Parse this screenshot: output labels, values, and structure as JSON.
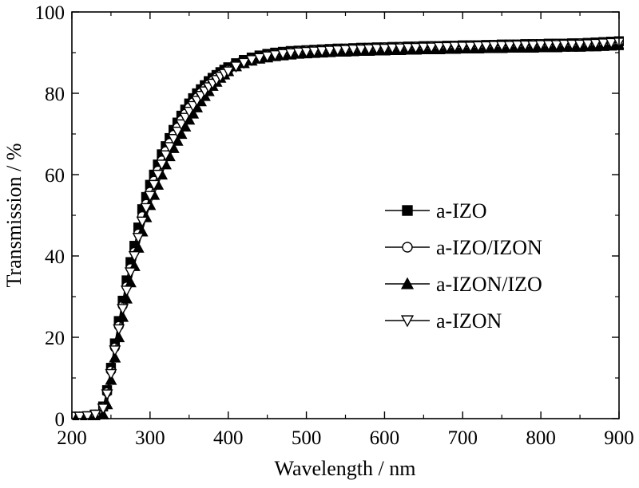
{
  "chart_data": {
    "type": "line",
    "title": "",
    "xlabel": "Wavelength / nm",
    "ylabel": "Transmission / %",
    "xlim": [
      200,
      900
    ],
    "ylim": [
      0,
      100
    ],
    "xticks": [
      200,
      300,
      400,
      500,
      600,
      700,
      800,
      900
    ],
    "yticks": [
      0,
      20,
      40,
      60,
      80,
      100
    ],
    "grid": false,
    "legend_position": "center-right",
    "x": [
      200,
      210,
      220,
      230,
      240,
      245,
      250,
      255,
      260,
      265,
      270,
      275,
      280,
      285,
      290,
      295,
      300,
      305,
      310,
      315,
      320,
      325,
      330,
      335,
      340,
      345,
      350,
      355,
      360,
      365,
      370,
      375,
      380,
      385,
      390,
      395,
      400,
      410,
      420,
      430,
      440,
      450,
      460,
      470,
      480,
      490,
      500,
      510,
      520,
      530,
      540,
      550,
      560,
      570,
      580,
      590,
      600,
      610,
      620,
      630,
      640,
      650,
      660,
      670,
      680,
      690,
      700,
      710,
      720,
      730,
      740,
      750,
      760,
      770,
      780,
      790,
      800,
      810,
      820,
      830,
      840,
      850,
      860,
      870,
      880,
      890,
      900
    ],
    "series": [
      {
        "name": "a-IZO",
        "marker": "square-filled",
        "values": [
          0.5,
          0.5,
          0.6,
          1.0,
          3.0,
          7.0,
          12.5,
          18.5,
          24.0,
          29.0,
          34.0,
          38.5,
          42.5,
          47.0,
          51.5,
          54.5,
          57.5,
          60.0,
          62.5,
          65.0,
          67.0,
          69.0,
          71.0,
          72.8,
          74.5,
          76.0,
          77.5,
          78.8,
          80.0,
          81.0,
          82.0,
          83.0,
          83.8,
          84.5,
          85.2,
          85.8,
          86.4,
          87.4,
          88.2,
          88.8,
          89.3,
          89.7,
          90.0,
          90.2,
          90.4,
          90.5,
          90.6,
          90.7,
          90.8,
          90.9,
          91.0,
          91.0,
          91.1,
          91.2,
          91.2,
          91.3,
          91.3,
          91.4,
          91.4,
          91.5,
          91.5,
          91.6,
          91.6,
          91.6,
          91.7,
          91.7,
          91.8,
          91.8,
          91.8,
          91.9,
          91.9,
          92.0,
          92.0,
          92.0,
          92.1,
          92.1,
          92.1,
          92.2,
          92.2,
          92.2,
          92.3,
          92.3,
          92.4,
          92.5,
          92.6,
          92.7,
          92.8
        ]
      },
      {
        "name": "a-IZO/IZON",
        "marker": "circle-open",
        "values": [
          0.5,
          0.5,
          0.6,
          1.0,
          2.8,
          6.5,
          11.8,
          17.5,
          22.8,
          27.8,
          32.5,
          37.0,
          41.0,
          45.5,
          49.8,
          52.8,
          55.8,
          58.5,
          61.0,
          63.5,
          65.8,
          67.8,
          69.8,
          71.6,
          73.4,
          75.0,
          76.5,
          77.8,
          79.0,
          80.2,
          81.2,
          82.2,
          83.1,
          83.9,
          84.6,
          85.2,
          85.8,
          86.9,
          87.8,
          88.5,
          89.0,
          89.4,
          89.7,
          90.0,
          90.2,
          90.4,
          90.5,
          90.6,
          90.7,
          90.8,
          90.9,
          91.0,
          91.0,
          91.1,
          91.2,
          91.2,
          91.3,
          91.3,
          91.4,
          91.4,
          91.5,
          91.5,
          91.6,
          91.6,
          91.6,
          91.7,
          91.7,
          91.8,
          91.8,
          91.8,
          91.9,
          91.9,
          92.0,
          92.0,
          92.0,
          92.1,
          92.1,
          92.1,
          92.2,
          92.2,
          92.2,
          92.3,
          92.3,
          92.4,
          92.5,
          92.6,
          92.7
        ]
      },
      {
        "name": "a-IZON/IZO",
        "marker": "triangle-up-filled",
        "values": [
          0.3,
          0.3,
          0.3,
          0.4,
          1.0,
          3.5,
          9.5,
          15.0,
          20.0,
          25.0,
          29.5,
          33.5,
          37.5,
          42.0,
          46.0,
          49.5,
          52.5,
          55.0,
          57.5,
          60.0,
          62.5,
          64.5,
          66.5,
          68.3,
          70.0,
          71.8,
          73.5,
          75.0,
          76.5,
          78.0,
          79.3,
          80.5,
          81.8,
          82.8,
          83.8,
          84.6,
          85.4,
          86.6,
          87.4,
          88.0,
          88.5,
          88.8,
          89.1,
          89.3,
          89.5,
          89.7,
          89.8,
          89.9,
          90.0,
          90.1,
          90.2,
          90.2,
          90.3,
          90.4,
          90.4,
          90.5,
          90.5,
          90.6,
          90.6,
          90.7,
          90.7,
          90.8,
          90.8,
          90.8,
          90.9,
          90.9,
          91.0,
          91.0,
          91.0,
          91.1,
          91.1,
          91.1,
          91.2,
          91.2,
          91.2,
          91.2,
          91.3,
          91.3,
          91.3,
          91.4,
          91.4,
          91.4,
          91.5,
          91.5,
          91.6,
          91.7,
          91.8
        ]
      },
      {
        "name": "a-IZON",
        "marker": "triangle-down-open",
        "values": [
          0.5,
          0.5,
          0.6,
          1.0,
          2.5,
          6.0,
          11.0,
          16.8,
          22.0,
          27.0,
          31.5,
          36.0,
          40.0,
          44.5,
          48.5,
          51.8,
          54.8,
          57.5,
          60.0,
          62.5,
          64.8,
          66.8,
          68.8,
          70.6,
          72.4,
          74.0,
          75.5,
          76.9,
          78.2,
          79.4,
          80.5,
          81.5,
          82.4,
          83.3,
          84.1,
          84.8,
          85.4,
          86.6,
          87.5,
          88.2,
          88.7,
          89.1,
          89.4,
          89.7,
          89.9,
          90.1,
          90.2,
          90.3,
          90.4,
          90.5,
          90.6,
          90.7,
          90.8,
          90.8,
          90.9,
          91.0,
          91.0,
          91.1,
          91.1,
          91.2,
          91.2,
          91.3,
          91.3,
          91.4,
          91.4,
          91.5,
          91.5,
          91.5,
          91.6,
          91.6,
          91.7,
          91.7,
          91.7,
          91.8,
          91.8,
          91.8,
          91.9,
          91.9,
          91.9,
          92.0,
          92.0,
          92.0,
          92.1,
          92.2,
          92.3,
          92.4,
          92.5
        ]
      }
    ]
  }
}
